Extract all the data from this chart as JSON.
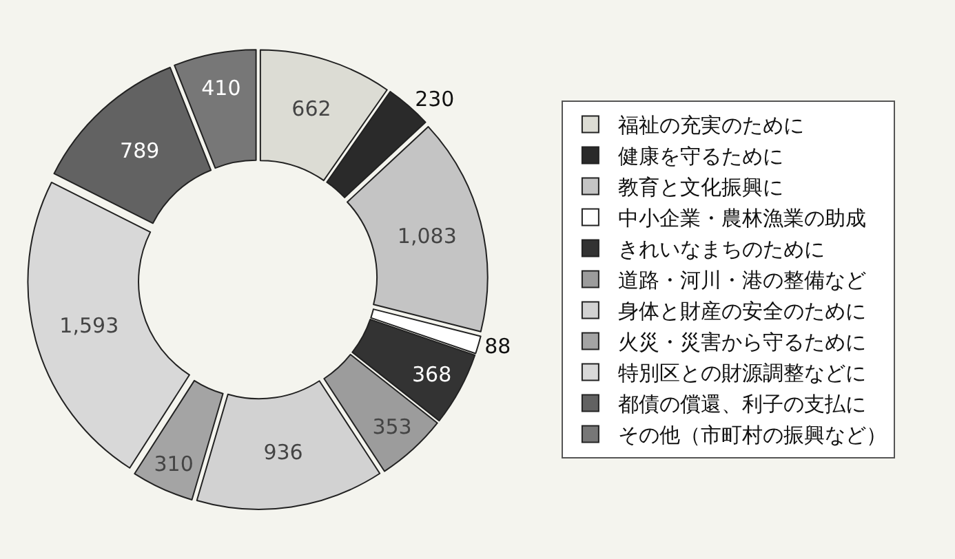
{
  "chart_data": {
    "type": "donut",
    "categories": [
      "福祉の充実のために",
      "健康を守るために",
      "教育と文化振興に",
      "中小企業・農林漁業の助成",
      "きれいなまちのために",
      "道路・河川・港の整備など",
      "身体と財産の安全のために",
      "火災・災害から守るために",
      "特別区との財源調整などに",
      "都債の償還、利子の支払に",
      "その他（市町村の振興など）"
    ],
    "values": [
      662,
      230,
      1083,
      88,
      368,
      353,
      936,
      310,
      1593,
      789,
      410
    ],
    "value_labels": [
      "662",
      "230",
      "1,083",
      "88",
      "368",
      "353",
      "936",
      "310",
      "1,593",
      "789",
      "410"
    ],
    "colors": [
      "#dcdcd4",
      "#2a2a2a",
      "#c4c4c4",
      "#ffffff",
      "#333333",
      "#9c9c9c",
      "#d2d2d2",
      "#a4a4a4",
      "#d8d8d8",
      "#626262",
      "#777777"
    ],
    "legend": "right"
  }
}
